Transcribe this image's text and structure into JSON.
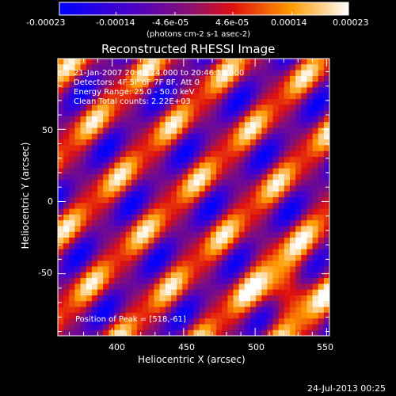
{
  "chart_data": {
    "type": "heatmap",
    "title": "Reconstructed RHESSI Image",
    "xlabel": "Heliocentric X (arcsec)",
    "ylabel": "Heliocentric Y (arcsec)",
    "xlim": [
      362,
      552
    ],
    "ylim": [
      -93,
      99
    ],
    "x_ticks": [
      400,
      450,
      500,
      550
    ],
    "y_ticks": [
      -50,
      0,
      50
    ],
    "colormap": "blue-purple-red-yellow-white (Rainbow-like)",
    "colorbar": {
      "label_line": "(photons cm-2 s-1 asec-2)",
      "range": [
        -0.00023,
        0.00023
      ],
      "tick_labels": [
        "-0.00023",
        "-0.00014",
        "-4.6e-05",
        "4.6e-05",
        "0.00014",
        "0.00023"
      ]
    },
    "annotations": [
      "21-Jan-2007 20:44:24.000 to 20:46:16.000",
      "Detectors: 4F 5F 6F 7F 8F, Att 0",
      "Energy Range: 25.0 - 50.0 keV",
      "Clean     Total counts: 2.22E+03",
      "Position of Peak = [518,-61]"
    ],
    "peak_position": [
      518,
      -61
    ],
    "timestamp": "24-Jul-2013 00:25"
  }
}
